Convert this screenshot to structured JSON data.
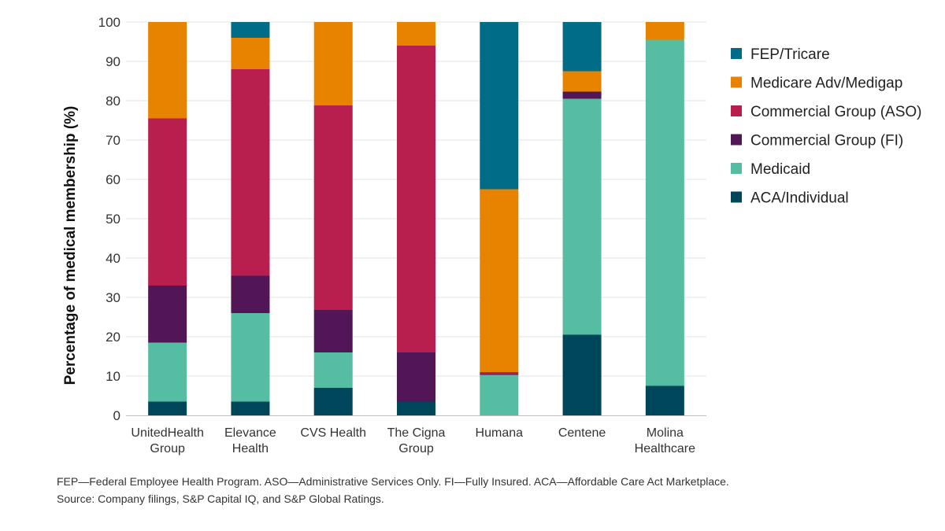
{
  "chart_data": {
    "type": "bar",
    "stacked": true,
    "title": "",
    "xlabel": "",
    "ylabel": "Percentage of medical membership (%)",
    "ylim": [
      0,
      100
    ],
    "yticks": [
      "0",
      "10",
      "20",
      "30",
      "40",
      "50",
      "60",
      "70",
      "80",
      "90",
      "100"
    ],
    "grid": true,
    "legend_position": "right",
    "categories": [
      [
        "UnitedHealth",
        "Group"
      ],
      [
        "Elevance",
        "Health"
      ],
      [
        "CVS Health"
      ],
      [
        "The Cigna",
        "Group"
      ],
      [
        "Humana"
      ],
      [
        "Centene"
      ],
      [
        "Molina",
        "Healthcare"
      ]
    ],
    "series": [
      {
        "name": "ACA/Individual",
        "color": "#00465a",
        "values": [
          3.5,
          3.5,
          7,
          3.5,
          0,
          20.5,
          7.5
        ]
      },
      {
        "name": "Medicaid",
        "color": "#55bda1",
        "values": [
          15,
          22.5,
          9,
          0,
          10.3,
          60,
          88
        ]
      },
      {
        "name": "Commercial Group (FI)",
        "color": "#521656",
        "values": [
          14.5,
          9.5,
          10.8,
          12.5,
          0.2,
          1.8,
          0
        ]
      },
      {
        "name": "Commercial Group (ASO)",
        "color": "#b91f4e",
        "values": [
          42.5,
          52.5,
          52,
          78,
          0.5,
          0,
          0
        ]
      },
      {
        "name": "Medicare Adv/Medigap",
        "color": "#e88300",
        "values": [
          24.5,
          8,
          21.2,
          6,
          46.5,
          5.2,
          4.5
        ]
      },
      {
        "name": "FEP/Tricare",
        "color": "#006c87",
        "values": [
          0,
          4,
          0,
          0,
          42.5,
          12.5,
          0
        ]
      }
    ],
    "legend_order": [
      "FEP/Tricare",
      "Medicare Adv/Medigap",
      "Commercial Group (ASO)",
      "Commercial Group (FI)",
      "Medicaid",
      "ACA/Individual"
    ]
  },
  "footnotes": {
    "line1": "FEP—Federal Employee Health Program. ASO—Administrative Services Only. FI—Fully Insured. ACA—Affordable Care Act Marketplace.",
    "line2": "Source: Company filings, S&P Capital IQ, and S&P Global Ratings."
  }
}
